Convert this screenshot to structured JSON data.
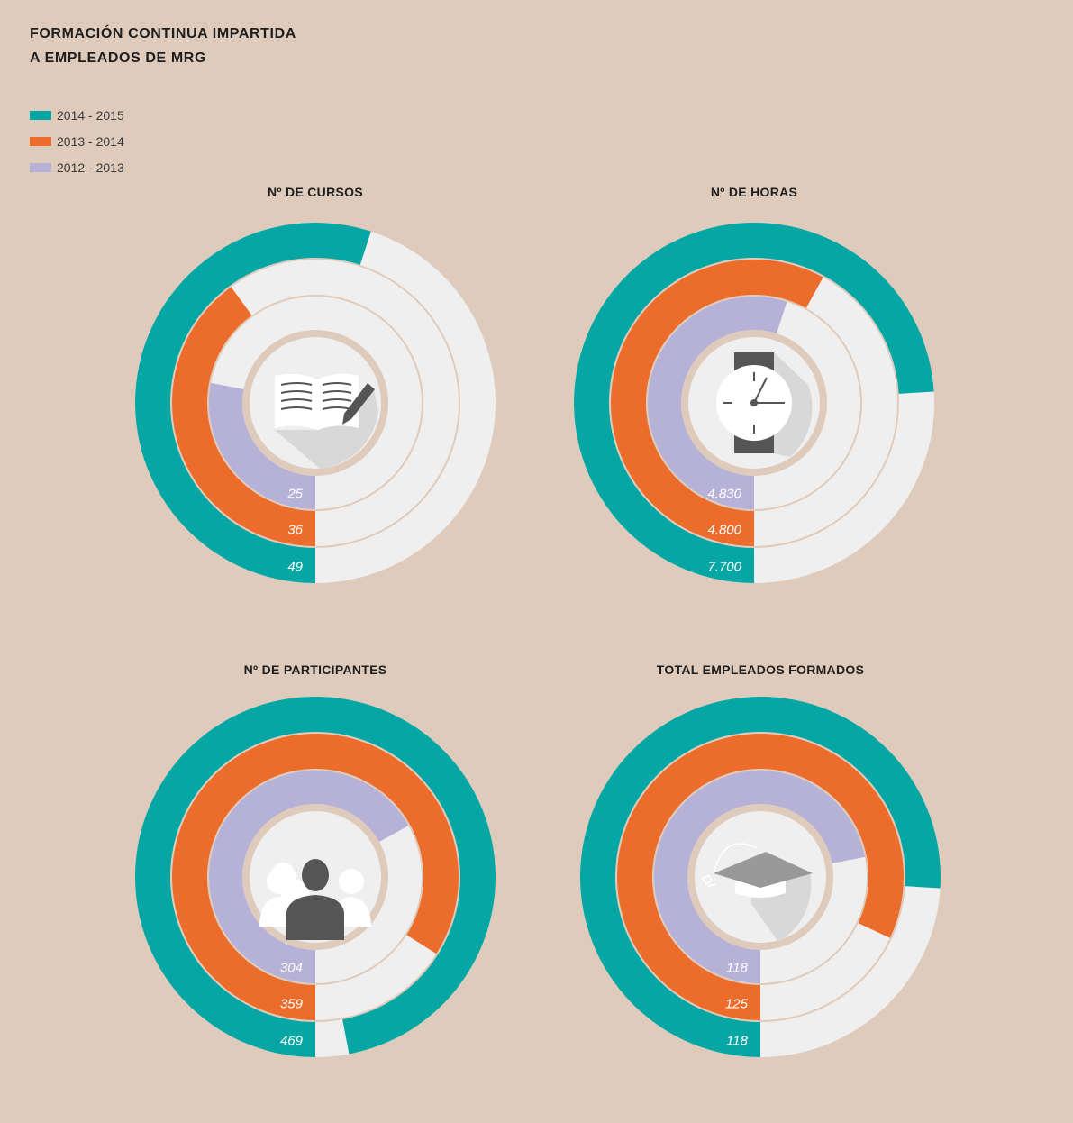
{
  "title": {
    "line1": "FORMACIÓN CONTINUA IMPARTIDA",
    "line2": "A EMPLEADOS DE MRG"
  },
  "legend": [
    {
      "label": "2014 - 2015",
      "color": "#05a6a4"
    },
    {
      "label": "2013 - 2014",
      "color": "#ec6c2b"
    },
    {
      "label": "2012 - 2013",
      "color": "#b6b1d7"
    }
  ],
  "colors": {
    "background": "#dfcbbb",
    "track": "#efefef",
    "gap": "#dfcbbb"
  },
  "chart_data": [
    {
      "type": "radial-bar",
      "title": "Nº DE CURSOS",
      "icon": "book-pen-icon",
      "series": [
        {
          "name": "2014 - 2015",
          "value": 49,
          "label": "49",
          "fraction": 0.55,
          "color": "#05a6a4"
        },
        {
          "name": "2013 - 2014",
          "value": 36,
          "label": "36",
          "fraction": 0.4,
          "color": "#ec6c2b"
        },
        {
          "name": "2012 - 2013",
          "value": 25,
          "label": "25",
          "fraction": 0.28,
          "color": "#b6b1d7"
        }
      ]
    },
    {
      "type": "radial-bar",
      "title": "Nº DE HORAS",
      "icon": "wristwatch-icon",
      "series": [
        {
          "name": "2014 - 2015",
          "value": 7700,
          "label": "7.700",
          "fraction": 0.74,
          "color": "#05a6a4"
        },
        {
          "name": "2013 - 2014",
          "value": 4800,
          "label": "4.800",
          "fraction": 0.58,
          "color": "#ec6c2b"
        },
        {
          "name": "2012 - 2013",
          "value": 4830,
          "label": "4.830",
          "fraction": 0.55,
          "color": "#b6b1d7"
        }
      ]
    },
    {
      "type": "radial-bar",
      "title": "Nº DE PARTICIPANTES",
      "icon": "people-icon",
      "series": [
        {
          "name": "2014 - 2015",
          "value": 469,
          "label": "469",
          "fraction": 0.97,
          "color": "#05a6a4"
        },
        {
          "name": "2013 - 2014",
          "value": 359,
          "label": "359",
          "fraction": 0.84,
          "color": "#ec6c2b"
        },
        {
          "name": "2012 - 2013",
          "value": 304,
          "label": "304",
          "fraction": 0.67,
          "color": "#b6b1d7"
        }
      ]
    },
    {
      "type": "radial-bar",
      "title": "TOTAL EMPLEADOS FORMADOS",
      "icon": "graduation-cap-icon",
      "series": [
        {
          "name": "2014 - 2015",
          "value": 118,
          "label": "118",
          "fraction": 0.76,
          "color": "#05a6a4"
        },
        {
          "name": "2013 - 2014",
          "value": 125,
          "label": "125",
          "fraction": 0.82,
          "color": "#ec6c2b"
        },
        {
          "name": "2012 - 2013",
          "value": 118,
          "label": "118",
          "fraction": 0.72,
          "color": "#b6b1d7"
        }
      ]
    }
  ]
}
